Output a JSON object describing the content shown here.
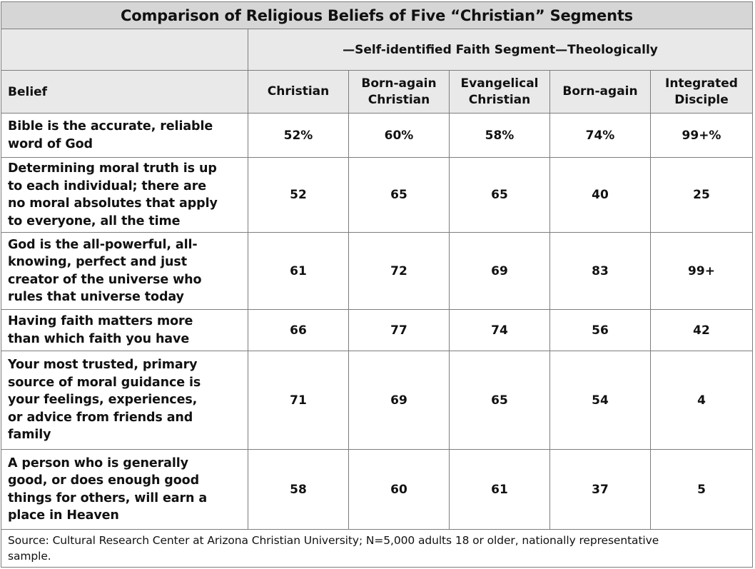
{
  "chart_data": {
    "type": "table",
    "title": "Comparison of Religious Beliefs of Five “Christian” Segments",
    "segment_label": "—Self-identified Faith Segment—Theologically",
    "belief_header": "Belief",
    "columns": [
      [
        "Christian"
      ],
      [
        "Born-again",
        "Christian"
      ],
      [
        "Evangelical",
        "Christian"
      ],
      [
        "Born-again"
      ],
      [
        "Integrated",
        "Disciple"
      ]
    ],
    "rows": [
      {
        "belief": [
          "Bible is the accurate, reliable",
          "word of God"
        ],
        "values": [
          "52%",
          "60%",
          "58%",
          "74%",
          "99+%"
        ]
      },
      {
        "belief": [
          "Determining moral truth is up",
          "to each individual; there are",
          "no moral absolutes that apply",
          "to everyone, all the time"
        ],
        "values": [
          "52",
          "65",
          "65",
          "40",
          "25"
        ]
      },
      {
        "belief": [
          "God is the all-powerful, all-",
          "knowing, perfect and just",
          "creator of the universe who",
          "rules that universe today"
        ],
        "values": [
          "61",
          "72",
          "69",
          "83",
          "99+"
        ]
      },
      {
        "belief": [
          "Having faith matters more",
          "than which faith you have"
        ],
        "values": [
          "66",
          "77",
          "74",
          "56",
          "42"
        ]
      },
      {
        "belief": [
          "Your most trusted, primary",
          "source of moral guidance is",
          "your feelings, experiences,",
          "or advice from friends and",
          "family"
        ],
        "values": [
          "71",
          "69",
          "65",
          "54",
          "4"
        ]
      },
      {
        "belief": [
          "A person who is generally",
          "good, or does enough good",
          "things for others, will earn a",
          "place in Heaven"
        ],
        "values": [
          "58",
          "60",
          "61",
          "37",
          "5"
        ]
      }
    ],
    "source": [
      "Source: Cultural Research Center at Arizona Christian University; N=5,000 adults 18 or older, nationally representative",
      "sample."
    ]
  },
  "colors": {
    "title_background": "#d6d6d6",
    "header_background": "#e9e9e9",
    "border": "#7d7d7d",
    "text": "#111111"
  }
}
